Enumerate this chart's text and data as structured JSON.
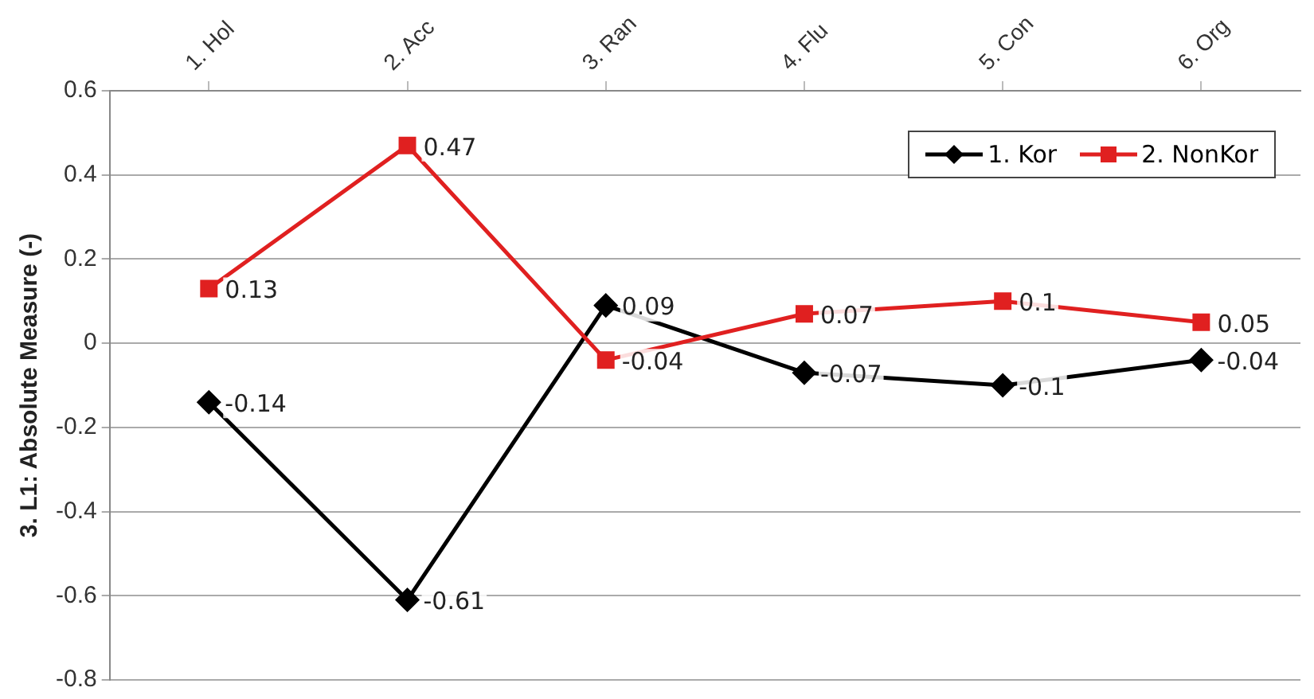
{
  "chart_data": {
    "type": "line",
    "ylabel": "3. L1: Absolute Measure (-)",
    "categories": [
      "1. Hol",
      "2. Acc",
      "3. Ran",
      "4. Flu",
      "5. Con",
      "6. Org"
    ],
    "series": [
      {
        "name": "1. Kor",
        "color": "#000000",
        "marker": "diamond",
        "values": [
          -0.14,
          -0.61,
          0.09,
          -0.07,
          -0.1,
          -0.04
        ]
      },
      {
        "name": "2. NonKor",
        "color": "#e02020",
        "marker": "square",
        "values": [
          0.13,
          0.47,
          -0.04,
          0.07,
          0.1,
          0.05
        ]
      }
    ],
    "ylim": [
      -0.8,
      0.6
    ],
    "yticks": [
      -0.8,
      -0.6,
      -0.4,
      -0.2,
      0,
      0.2,
      0.4,
      0.6
    ],
    "grid": "y",
    "legend": "top right",
    "data_labels": true
  }
}
